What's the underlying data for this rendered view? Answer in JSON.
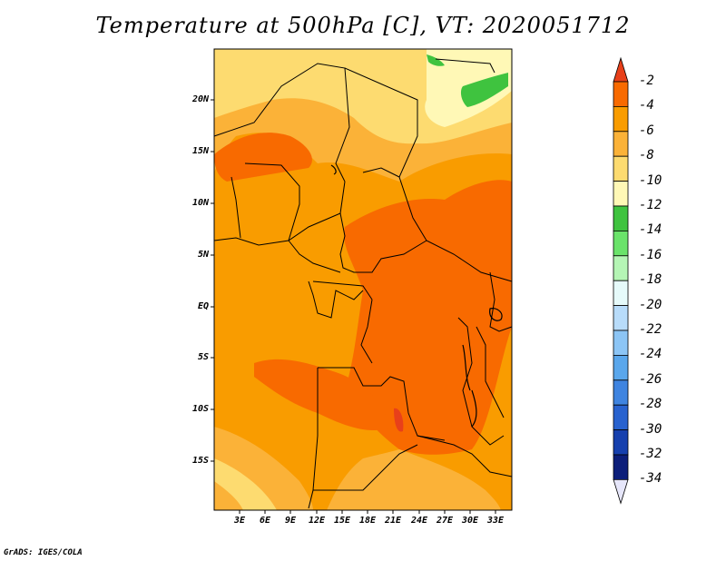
{
  "title": "Temperature at 500hPa [C], VT: 2020051712",
  "credit": "GrADS: IGES/COLA",
  "lat_labels": [
    "20N",
    "15N",
    "10N",
    "5N",
    "EQ",
    "5S",
    "10S",
    "15S"
  ],
  "lon_labels": [
    "3E",
    "6E",
    "9E",
    "12E",
    "15E",
    "18E",
    "21E",
    "24E",
    "27E",
    "30E",
    "33E"
  ],
  "colorbar": {
    "labels": [
      "-2",
      "-4",
      "-6",
      "-8",
      "-10",
      "-12",
      "-14",
      "-16",
      "-18",
      "-20",
      "-22",
      "-24",
      "-26",
      "-28",
      "-30",
      "-32",
      "-34"
    ],
    "colors": [
      "#e8401a",
      "#f86a00",
      "#f99c00",
      "#fbb238",
      "#fddb70",
      "#fff8b6",
      "#3fc33f",
      "#6ae36a",
      "#b5f5b5",
      "#e6fafa",
      "#b8dcfa",
      "#8cc5f5",
      "#5aa7ec",
      "#3f84e0",
      "#2862cf",
      "#1640ae",
      "#0c1e7a",
      "#e6e6fa"
    ]
  },
  "map_colors": {
    "c_minus4": "#f86a00",
    "c_minus6": "#f99c00",
    "c_minus8": "#fbb238",
    "c_minus10": "#fddb70",
    "c_minus12": "#fff8b6",
    "c_minus14": "#3fc33f",
    "c_minus2": "#e8401a"
  }
}
